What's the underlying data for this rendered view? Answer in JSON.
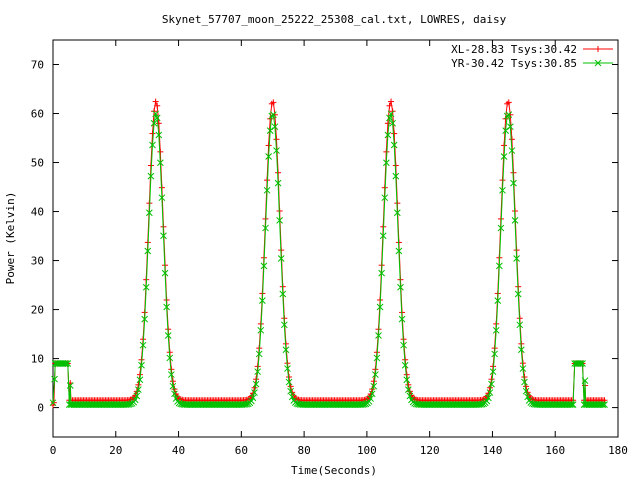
{
  "chart_data": {
    "type": "line",
    "title": "Skynet_57707_moon_25222_25308_cal.txt, LOWRES, daisy",
    "xlabel": "Time(Seconds)",
    "ylabel": "Power (Kelvin)",
    "xlim": [
      0,
      180
    ],
    "ylim": [
      -6,
      75
    ],
    "x_ticks": [
      0,
      20,
      40,
      60,
      80,
      100,
      120,
      140,
      160,
      180
    ],
    "y_ticks": [
      0,
      10,
      20,
      30,
      40,
      50,
      60,
      70
    ],
    "grid": false,
    "legend_position": "top-right",
    "x_range_data": [
      0,
      176
    ],
    "peaks": [
      32.8,
      70.0,
      107.6,
      145.0
    ],
    "series": [
      {
        "name": "XL-28.83 Tsys:30.42",
        "color": "#ff0000",
        "marker": "plus",
        "peak_height": 62.5,
        "peak_width_sigma": 2.3,
        "baseline": 1.5,
        "cal_segments": [
          {
            "x0": 0.7,
            "x1": 5.0,
            "value": 9.0
          },
          {
            "x0": 165.8,
            "x1": 169.0,
            "value": 9.0
          }
        ],
        "start_points": [
          [
            0.0,
            0.5
          ],
          [
            0.3,
            1.0
          ]
        ],
        "edge_points": [
          [
            5.5,
            5.0
          ],
          [
            169.5,
            4.5
          ]
        ]
      },
      {
        "name": "YR-30.42 Tsys:30.85",
        "color": "#00c000",
        "marker": "cross",
        "peak_height": 60.0,
        "peak_width_sigma": 2.3,
        "baseline": 0.6,
        "cal_segments": [
          {
            "x0": 0.7,
            "x1": 5.0,
            "value": 9.0
          },
          {
            "x0": 165.8,
            "x1": 169.0,
            "value": 9.0
          }
        ],
        "start_points": [
          [
            0.0,
            1.0
          ],
          [
            0.5,
            5.8
          ]
        ],
        "edge_points": [
          [
            5.5,
            4.5
          ],
          [
            169.5,
            5.5
          ]
        ]
      }
    ]
  }
}
